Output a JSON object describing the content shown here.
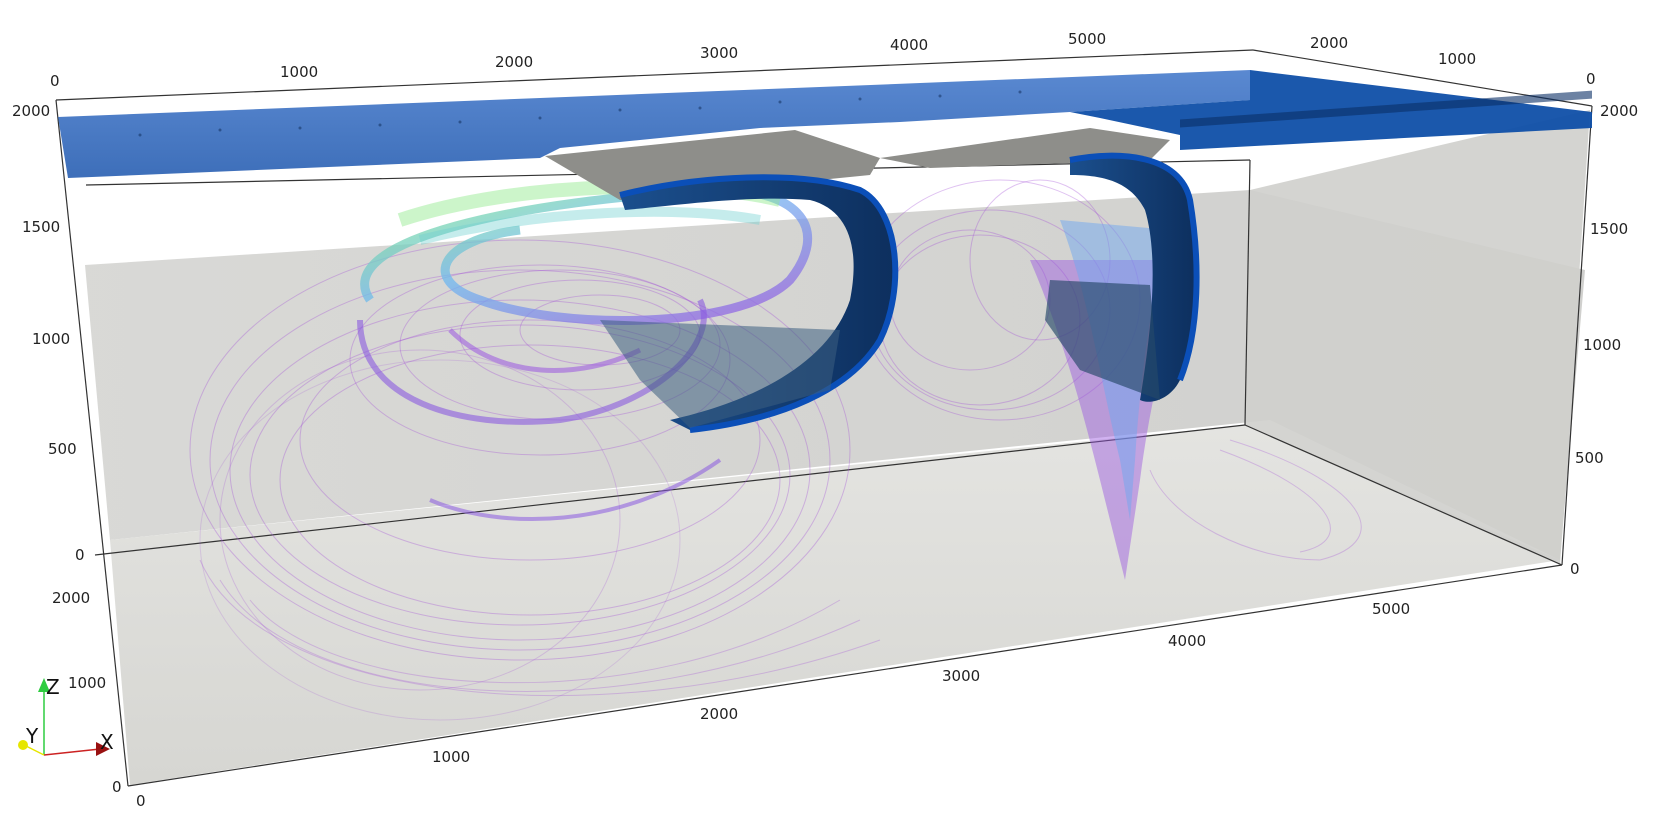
{
  "scene": {
    "top_axis_labels": [
      "0",
      "1000",
      "2000",
      "3000",
      "4000",
      "5000"
    ],
    "top_right_axis_labels": [
      "2000",
      "1000",
      "0"
    ],
    "left_z_labels": [
      "2000",
      "1500",
      "1000",
      "500",
      "0"
    ],
    "right_z_labels": [
      "2000",
      "1500",
      "1000",
      "500",
      "0"
    ],
    "bottom_y_labels": [
      "2000",
      "1000",
      "0"
    ],
    "bottom_x_labels": [
      "0",
      "1000",
      "2000",
      "3000",
      "4000",
      "5000"
    ],
    "orientation_axes": {
      "z_label": "Z",
      "y_label": "Y",
      "x_label": "X"
    }
  },
  "colors": {
    "background": "#ffffff",
    "water_blue": "#1f5fbf",
    "deep_blue": "#0b3f8f",
    "dark_navy": "#123865",
    "grey_floor": "#dadad6",
    "grey_wall": "#d0d0ce",
    "streamline_purple": "#a24fd6",
    "streamline_green": "#7ee07a",
    "plate_grey": "#8e8e8a"
  }
}
